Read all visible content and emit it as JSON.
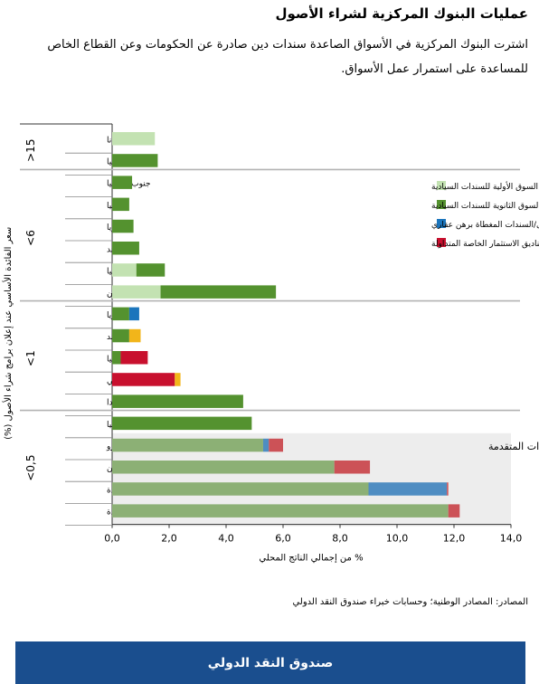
{
  "title": "عمليات البنوك المركزية لشراء الأصول",
  "subtitle": "اشترت البنوك المركزية في الأسواق الصاعدة سندات دين صادرة عن الحكومات وعن القطاع الخاص للمساعدة على استمرار عمل الأسواق.",
  "source": "المصادر: المصادر الوطنية؛ وحسابات خبراء صندوق النقد الدولي",
  "footer_label": "صندوق النقد الدولي",
  "colors": {
    "primary_sov": "#c3e2b2",
    "secondary_sov": "#54922f",
    "mbs": "#1b75bc",
    "etf": "#c8102e",
    "primary_sov_adv": "#a2c58e",
    "secondary_sov_adv": "#8cb075",
    "mbs_adv": "#4f8dc2",
    "etf_adv": "#cc5257",
    "colombia_other": "#f2b51a",
    "highlight_bg": "#ededed"
  },
  "chart_data": {
    "type": "bar",
    "orientation": "horizontal",
    "stacked": true,
    "xlabel": "% من إجمالي الناتج المحلي",
    "ylabel": "سعر الفائدة الأساسي عند إعلان برامج شراء الأصول (%)",
    "xlim": [
      0,
      14
    ],
    "xticks": [
      "0,0",
      "2,0",
      "4,0",
      "6,0",
      "8,0",
      "10,0",
      "12,0",
      "14,0"
    ],
    "highlight_label": "الاقتصادات المتقدمة",
    "legend": [
      {
        "key": "primary_sov",
        "label": "السوق الأولية للسندات السيادية"
      },
      {
        "key": "secondary_sov",
        "label": "السوق الثانوية للسندات السيادية"
      },
      {
        "key": "mbs",
        "label": "الأوراق المالية المضمونة بأصول/السندات المغطاة برهن عقاري"
      },
      {
        "key": "etf",
        "label": "صناديق الاستثمار الخاصة المتداولة"
      }
    ],
    "groups": [
      {
        "label": ">15",
        "rows": [
          {
            "name": "غانا",
            "segments": [
              {
                "key": "primary_sov",
                "value": 1.5
              }
            ]
          },
          {
            "name": "تركيا",
            "segments": [
              {
                "key": "secondary_sov",
                "value": 1.6
              }
            ]
          }
        ]
      },
      {
        "label": "<6",
        "rows": [
          {
            "name": "جنوب إفريقيا",
            "segments": [
              {
                "key": "secondary_sov",
                "value": 0.7
              }
            ]
          },
          {
            "name": "رومانيا",
            "segments": [
              {
                "key": "secondary_sov",
                "value": 0.6
              }
            ]
          },
          {
            "name": "ماليزيا",
            "segments": [
              {
                "key": "secondary_sov",
                "value": 0.75
              }
            ]
          },
          {
            "name": "الهند",
            "segments": [
              {
                "key": "secondary_sov",
                "value": 0.95
              }
            ]
          },
          {
            "name": "إندونيسيا",
            "segments": [
              {
                "key": "primary_sov",
                "value": 0.85
              },
              {
                "key": "secondary_sov",
                "value": 1.0
              }
            ]
          },
          {
            "name": "الفلبين",
            "segments": [
              {
                "key": "primary_sov",
                "value": 1.7
              },
              {
                "key": "secondary_sov",
                "value": 4.05
              }
            ]
          }
        ]
      },
      {
        "label": "<1",
        "rows": [
          {
            "name": "هنغاريا",
            "segments": [
              {
                "key": "secondary_sov",
                "value": 0.6
              },
              {
                "key": "mbs",
                "value": 0.35
              }
            ]
          },
          {
            "name": "تايلند",
            "segments": [
              {
                "key": "secondary_sov",
                "value": 0.6
              },
              {
                "key": "colombia_other",
                "value": 0.4
              }
            ]
          },
          {
            "name": "كولومبيا",
            "segments": [
              {
                "key": "secondary_sov",
                "value": 0.3
              },
              {
                "key": "etf",
                "value": 0.95
              }
            ]
          },
          {
            "name": "شيلي",
            "segments": [
              {
                "key": "etf",
                "value": 2.2
              },
              {
                "key": "colombia_other",
                "value": 0.2
              }
            ]
          },
          {
            "name": "بولندا",
            "segments": [
              {
                "key": "secondary_sov",
                "value": 4.6
              }
            ]
          }
        ]
      },
      {
        "label": "<0,5",
        "rows": [
          {
            "name": "كرواتيا",
            "segments": [
              {
                "key": "secondary_sov",
                "value": 4.9
              }
            ]
          },
          {
            "name": "منطقة اليورو",
            "advanced": true,
            "segments": [
              {
                "key": "secondary_sov_adv",
                "value": 5.3
              },
              {
                "key": "mbs_adv",
                "value": 0.2
              },
              {
                "key": "etf_adv",
                "value": 0.5
              }
            ]
          },
          {
            "name": "اليابان",
            "advanced": true,
            "segments": [
              {
                "key": "secondary_sov_adv",
                "value": 7.8
              },
              {
                "key": "etf_adv",
                "value": 1.25
              }
            ]
          },
          {
            "name": "الولايات المتحدة",
            "advanced": true,
            "segments": [
              {
                "key": "secondary_sov_adv",
                "value": 9.0
              },
              {
                "key": "mbs_adv",
                "value": 2.75
              },
              {
                "key": "etf_adv",
                "value": 0.05
              }
            ]
          },
          {
            "name": "المملكة المتحدة",
            "advanced": true,
            "segments": [
              {
                "key": "secondary_sov_adv",
                "value": 11.8
              },
              {
                "key": "etf_adv",
                "value": 0.4
              }
            ]
          }
        ]
      }
    ]
  }
}
